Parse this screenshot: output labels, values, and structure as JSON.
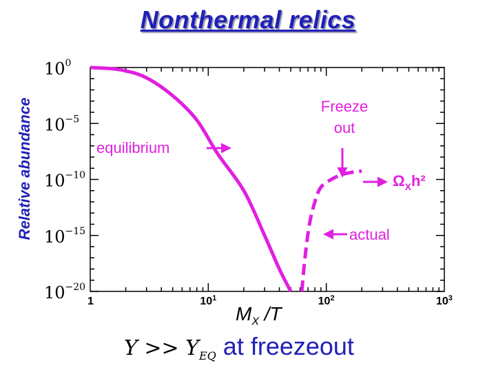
{
  "title": "Nonthermal relics",
  "footer": {
    "math_y": "Y",
    "math_op": " >> ",
    "math_yeq": "Y",
    "math_yeq_sub": "EQ",
    "text": "at freezeout"
  },
  "colors": {
    "curve": "#e020e0",
    "title": "#2020b8",
    "axis": "#000000"
  },
  "chart_data": {
    "type": "line",
    "xlabel": {
      "main": "M",
      "sub": "X",
      "tail": " /T"
    },
    "ylabel": "Relative abundance",
    "x_scale": "log",
    "y_scale": "log",
    "xlim": [
      1,
      1000
    ],
    "ylim": [
      1e-20,
      1
    ],
    "x_ticks": [
      {
        "base": "1",
        "exp": ""
      },
      {
        "base": "10",
        "exp": "1"
      },
      {
        "base": "10",
        "exp": "2"
      },
      {
        "base": "10",
        "exp": "3"
      }
    ],
    "y_ticks": [
      {
        "base": "10",
        "exp": "0"
      },
      {
        "base": "10",
        "exp": "−5"
      },
      {
        "base": "10",
        "exp": "−10"
      },
      {
        "base": "10",
        "exp": "−15"
      },
      {
        "base": "10",
        "exp": "−20"
      }
    ],
    "series": [
      {
        "style": "solid",
        "points": [
          [
            1,
            1
          ],
          [
            1.5,
            0.8
          ],
          [
            2,
            0.5
          ],
          [
            3,
            0.12
          ],
          [
            5,
            0.003
          ],
          [
            8,
            2e-05
          ],
          [
            12,
            2e-08
          ],
          [
            20,
            1e-11
          ],
          [
            30,
            1e-15
          ],
          [
            40,
            1e-18
          ],
          [
            50,
            1e-20
          ]
        ]
      },
      {
        "style": "dashed",
        "points": [
          [
            62,
            1e-20
          ],
          [
            66,
            1e-17
          ],
          [
            72,
            1e-14
          ],
          [
            80,
            1e-12
          ],
          [
            90,
            2e-11
          ],
          [
            110,
            1e-10
          ],
          [
            140,
            3e-10
          ],
          [
            180,
            5e-10
          ],
          [
            200,
            5.5e-10
          ]
        ]
      }
    ],
    "annotations": [
      {
        "id": "equilibrium",
        "text": "equilibrium"
      },
      {
        "id": "freeze",
        "lines": [
          "Freeze",
          "out"
        ]
      },
      {
        "id": "actual",
        "text": "actual"
      },
      {
        "id": "omega",
        "main": "Ω",
        "sub": "X",
        "tail": "h²"
      }
    ]
  }
}
